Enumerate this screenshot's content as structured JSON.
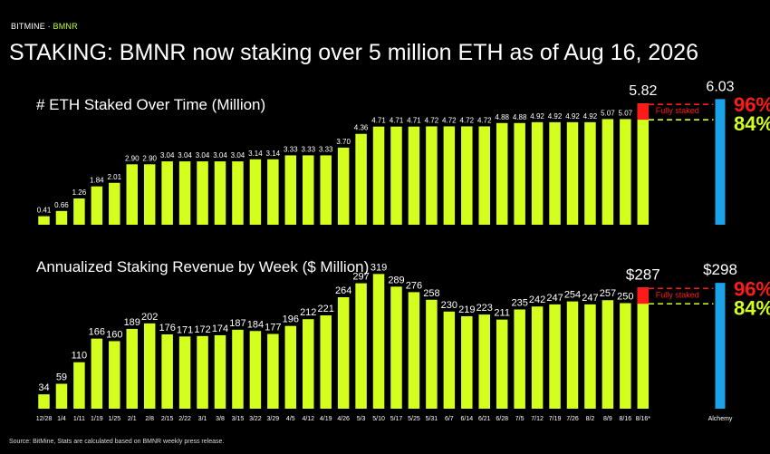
{
  "header": {
    "brand_prefix": "BITMINE · ",
    "brand_ticker": "BMNR",
    "headline": "STAKING: BMNR now staking over 5 million ETH as of Aug 16, 2026"
  },
  "footer": {
    "source": "Source: BitMine, Stats are calculated based on BMNR weekly press release."
  },
  "colors": {
    "bars": "#d4ff1e",
    "alchemy_bar": "#1aa3e8",
    "fully_staked": "#ff1a1a",
    "pct_96": "#ff1a1a",
    "pct_84": "#d4ff1e",
    "background": "#000000"
  },
  "chart_data": [
    {
      "type": "bar",
      "title": "# ETH Staked Over Time (Million)",
      "categories": [
        "12/28",
        "1/4",
        "1/11",
        "1/19",
        "1/25",
        "2/1",
        "2/8",
        "2/15",
        "2/22",
        "3/1",
        "3/8",
        "3/15",
        "3/22",
        "3/29",
        "4/5",
        "4/12",
        "4/19",
        "4/26",
        "5/3",
        "5/10",
        "5/17",
        "5/25",
        "5/31",
        "6/7",
        "6/14",
        "6/21",
        "6/28",
        "7/5",
        "7/12",
        "7/19",
        "7/26",
        "8/2",
        "8/9",
        "8/16",
        "8/16*",
        "Alchemy"
      ],
      "value_labels": [
        "0.41",
        "0.66",
        "1.26",
        "1.84",
        "2.01",
        "2.90",
        "2.90",
        "3.04",
        "3.04",
        "3.04",
        "3.04",
        "3.04",
        "3.14",
        "3.14",
        "3.33",
        "3.33",
        "3.33",
        "3.70",
        "4.36",
        "4.71",
        "4.71",
        "4.71",
        "4.72",
        "4.72",
        "4.72",
        "4.72",
        "4.88",
        "4.88",
        "4.92",
        "4.92",
        "4.92",
        "4.92",
        "5.07",
        "5.07",
        "5.82",
        "6.03"
      ],
      "values": [
        0.41,
        0.66,
        1.26,
        1.84,
        2.01,
        2.9,
        2.9,
        3.04,
        3.04,
        3.04,
        3.04,
        3.04,
        3.14,
        3.14,
        3.33,
        3.33,
        3.33,
        3.7,
        4.36,
        4.71,
        4.71,
        4.71,
        4.72,
        4.72,
        4.72,
        4.72,
        4.88,
        4.88,
        4.92,
        4.92,
        4.92,
        4.92,
        5.07,
        5.07,
        5.82,
        6.03
      ],
      "fully_staked_label": "Fully staked",
      "pct_high": "96%",
      "pct_low": "84%",
      "ylim": [
        0,
        6.6
      ]
    },
    {
      "type": "bar",
      "title": "Annualized Staking Revenue by Week ($ Million)",
      "categories": [
        "12/28",
        "1/4",
        "1/11",
        "1/19",
        "1/25",
        "2/1",
        "2/8",
        "2/15",
        "2/22",
        "3/1",
        "3/8",
        "3/15",
        "3/22",
        "3/29",
        "4/5",
        "4/12",
        "4/19",
        "4/26",
        "5/3",
        "5/10",
        "5/17",
        "5/25",
        "5/31",
        "6/7",
        "6/14",
        "6/21",
        "6/28",
        "7/5",
        "7/12",
        "7/19",
        "7/26",
        "8/2",
        "8/9",
        "8/16",
        "8/16*",
        "Alchemy"
      ],
      "value_labels": [
        "34",
        "59",
        "110",
        "166",
        "160",
        "189",
        "202",
        "176",
        "171",
        "172",
        "174",
        "187",
        "184",
        "177",
        "196",
        "212",
        "221",
        "264",
        "297",
        "319",
        "289",
        "276",
        "258",
        "230",
        "219",
        "223",
        "211",
        "235",
        "242",
        "247",
        "254",
        "247",
        "257",
        "250",
        "$287",
        "$298"
      ],
      "values": [
        34,
        59,
        110,
        166,
        160,
        189,
        202,
        176,
        171,
        172,
        174,
        187,
        184,
        177,
        196,
        212,
        221,
        264,
        297,
        319,
        289,
        276,
        258,
        230,
        219,
        223,
        211,
        235,
        242,
        247,
        254,
        247,
        257,
        250,
        287,
        298
      ],
      "fully_staked_label": "Fully staked",
      "pct_high": "96%",
      "pct_low": "84%",
      "ylim": [
        0,
        335
      ]
    }
  ]
}
